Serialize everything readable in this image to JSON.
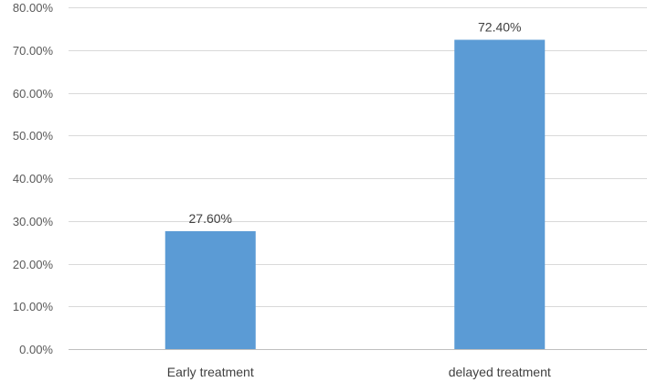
{
  "chart_data": {
    "type": "bar",
    "title": "",
    "xlabel": "",
    "ylabel": "",
    "categories": [
      "Early treatment",
      "delayed treatment"
    ],
    "values": [
      27.6,
      72.4
    ],
    "data_labels": [
      "27.60%",
      "72.40%"
    ],
    "ylim": [
      0,
      80
    ],
    "y_ticks": [
      0,
      10,
      20,
      30,
      40,
      50,
      60,
      70,
      80
    ],
    "y_tick_labels": [
      "0.00%",
      "10.00%",
      "20.00%",
      "30.00%",
      "40.00%",
      "50.00%",
      "60.00%",
      "70.00%",
      "80.00%"
    ],
    "grid": true,
    "legend": "none",
    "bar_color": "#5b9bd5"
  }
}
